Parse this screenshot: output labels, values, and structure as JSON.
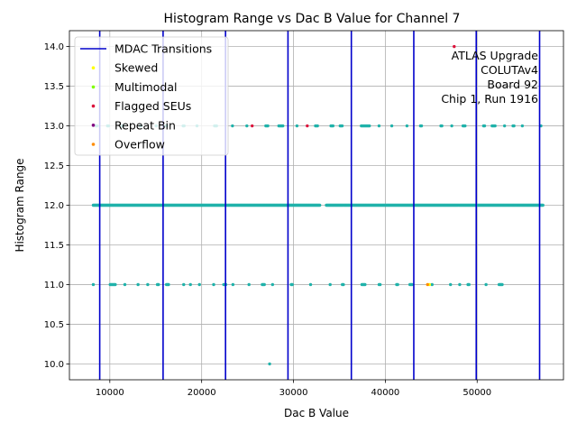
{
  "chart_data": {
    "type": "scatter",
    "title": "Histogram Range vs Dac B Value for Channel 7",
    "xlabel": "Dac B Value",
    "ylabel": "Histogram Range",
    "xlim": [
      5600,
      59400
    ],
    "ylim": [
      9.8,
      14.2
    ],
    "xticks": [
      10000,
      20000,
      30000,
      40000,
      50000
    ],
    "yticks": [
      10.0,
      10.5,
      11.0,
      11.5,
      12.0,
      12.5,
      13.0,
      13.5,
      14.0
    ],
    "xtick_labels": [
      "10000",
      "20000",
      "30000",
      "40000",
      "50000"
    ],
    "ytick_labels": [
      "10.0",
      "10.5",
      "11.0",
      "11.5",
      "12.0",
      "12.5",
      "13.0",
      "13.5",
      "14.0"
    ],
    "grid": true,
    "legend_position": "top-left",
    "annotation": [
      "ATLAS Upgrade",
      "COLUTAv4",
      "Board 92",
      "Chip 1, Run 1916"
    ],
    "mdac_transitions": [
      8900,
      15800,
      22600,
      29400,
      36300,
      43100,
      49900,
      56800
    ],
    "legend": [
      {
        "name": "MDAC Transitions",
        "kind": "line",
        "color": "#0000cc"
      },
      {
        "name": "Skewed",
        "kind": "dot",
        "color": "#ffff00"
      },
      {
        "name": "Multimodal",
        "kind": "dot",
        "color": "#7fff00"
      },
      {
        "name": "Flagged SEUs",
        "kind": "dot",
        "color": "#dc143c"
      },
      {
        "name": "Repeat Bin",
        "kind": "dot",
        "color": "#800080"
      },
      {
        "name": "Overflow",
        "kind": "dot",
        "color": "#ff8c00"
      }
    ],
    "series": [
      {
        "label": "main points",
        "color": "#20b2aa",
        "bands": [
          {
            "y": 12,
            "x_from": 8200,
            "x_to": 57200,
            "gaps": [
              [
                32900,
                33500
              ]
            ],
            "density": "dense"
          },
          {
            "y": 13,
            "x_from": 8500,
            "x_to": 57200,
            "gaps": [],
            "density": "medium"
          },
          {
            "y": 11,
            "x_from": 8200,
            "x_to": 53000,
            "gaps": [],
            "density": "medium"
          }
        ],
        "singles": [
          {
            "x": 27400,
            "y": 10
          }
        ]
      },
      {
        "label": "Flagged SEUs points",
        "color": "#dc143c",
        "singles": [
          {
            "x": 47500,
            "y": 14
          },
          {
            "x": 25500,
            "y": 13
          },
          {
            "x": 31500,
            "y": 13
          }
        ]
      },
      {
        "label": "Skewed points",
        "color": "#ffff00",
        "singles": [
          {
            "x": 44800,
            "y": 11
          }
        ]
      },
      {
        "label": "Overflow points",
        "color": "#ff8c00",
        "singles": [
          {
            "x": 44600,
            "y": 11
          }
        ]
      }
    ]
  }
}
